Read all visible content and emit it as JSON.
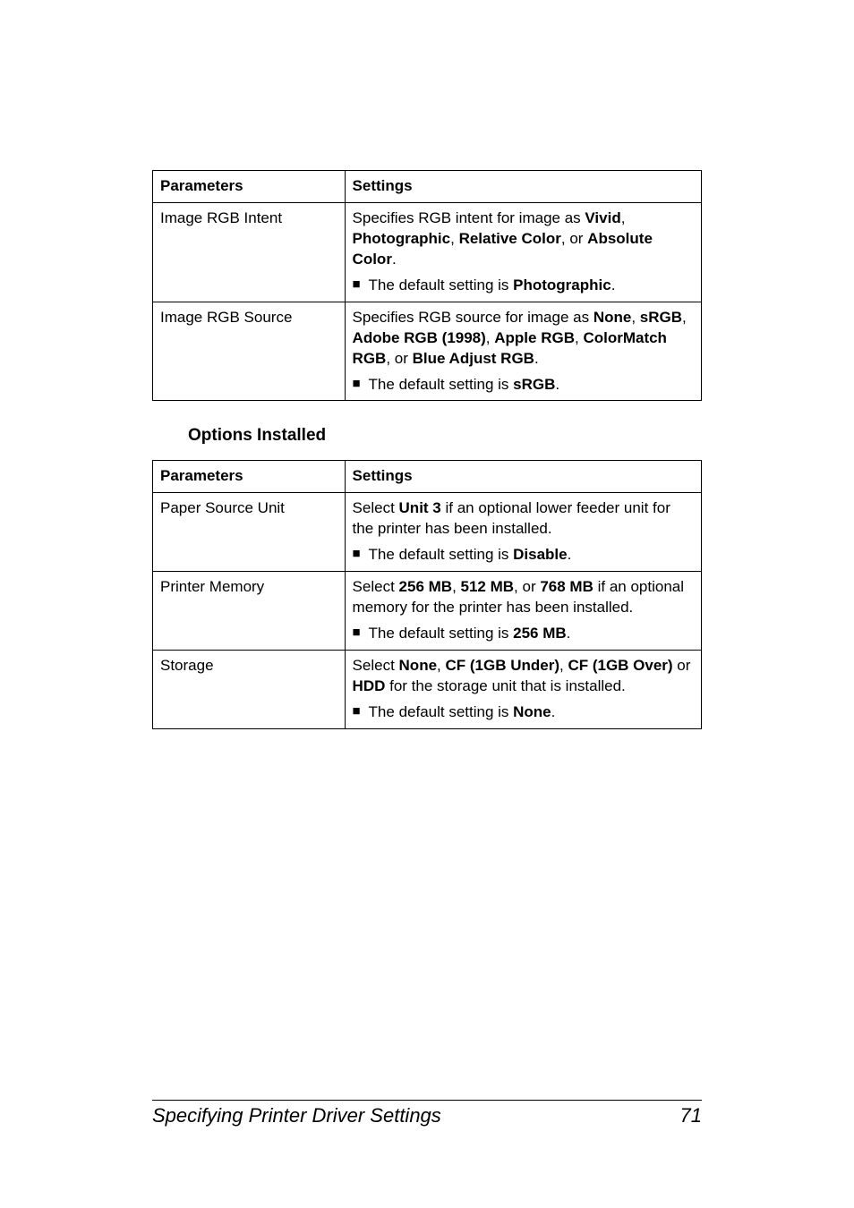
{
  "tables": {
    "color_matching": {
      "headers": {
        "param": "Parameters",
        "setting": "Settings"
      },
      "rows": [
        {
          "param": "Image RGB Intent",
          "desc_parts": [
            "Specifies RGB intent for image as ",
            "Vivid",
            ", ",
            "Photographic",
            ", ",
            "Relative Color",
            ", or ",
            "Absolute Color",
            "."
          ],
          "bullet_parts": [
            "The default setting is ",
            "Photographic",
            "."
          ]
        },
        {
          "param": "Image RGB Source",
          "desc_parts": [
            "Specifies RGB source for image as ",
            "None",
            ", ",
            "sRGB",
            ", ",
            "Adobe RGB (1998)",
            ", ",
            "Apple RGB",
            ", ",
            "ColorMatch RGB",
            ", or ",
            "Blue Adjust RGB",
            "."
          ],
          "bullet_parts": [
            "The default setting is ",
            "sRGB",
            "."
          ]
        }
      ]
    },
    "options_installed": {
      "heading": "Options Installed",
      "headers": {
        "param": "Parameters",
        "setting": "Settings"
      },
      "rows": [
        {
          "param": "Paper Source Unit",
          "desc_parts": [
            "Select ",
            "Unit 3",
            " if an optional lower feeder unit for the printer has been installed."
          ],
          "bullet_parts": [
            "The default setting is ",
            "Disable",
            "."
          ]
        },
        {
          "param": "Printer Memory",
          "desc_parts": [
            "Select ",
            "256 MB",
            ", ",
            "512 MB",
            ", or ",
            "768 MB",
            " if an optional memory for the printer has been installed."
          ],
          "bullet_parts": [
            "The default setting is ",
            "256 MB",
            "."
          ]
        },
        {
          "param": "Storage",
          "desc_parts": [
            "Select ",
            "None",
            ", ",
            "CF (1GB Under)",
            ", ",
            "CF (1GB Over)",
            " or ",
            "HDD",
            " for the storage unit that is installed."
          ],
          "bullet_parts": [
            "The default setting is ",
            "None",
            "."
          ]
        }
      ]
    }
  },
  "footer": {
    "title": "Specifying Printer Driver Settings",
    "page": "71"
  },
  "style": {
    "bullet_glyph": "■"
  }
}
